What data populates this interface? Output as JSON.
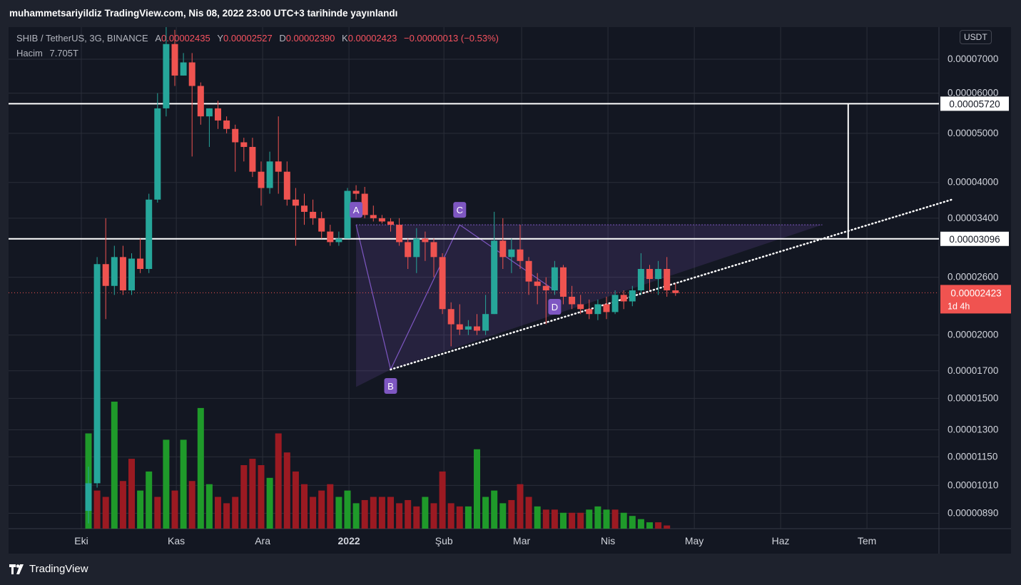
{
  "header": {
    "title": "muhammetsariyildiz TradingView.com, Nis 08, 2022 23:00 UTC+3 tarihinde yayınlandı"
  },
  "legend": {
    "symbol": "SHIB / TetherUS, 3G, BINANCE",
    "open_label": "A",
    "open": "0.00002435",
    "high_label": "Y",
    "high": "0.00002527",
    "low_label": "D",
    "low": "0.00002390",
    "close_label": "K",
    "close": "0.00002423",
    "change": "−0.00000013 (−0.53%)",
    "volume_label": "Hacim",
    "volume": "7.705T"
  },
  "unit": "USDT",
  "footer": {
    "brand": "TradingView"
  },
  "colors": {
    "up": "#26a69a",
    "down": "#ef5350",
    "vol_up": "#1f9a2a",
    "vol_down": "#9b1a22",
    "pattern": "#7e57c2",
    "price_badge": "#f05350",
    "background": "#131722"
  },
  "chart_data": {
    "type": "candlestick",
    "scale": "log",
    "ylim": [
      8.3e-06,
      8.1e-05
    ],
    "y_ticks": [
      "0.00007000",
      "0.00006000",
      "0.00005000",
      "0.00004000",
      "0.00003400",
      "0.00002600",
      "0.00002000",
      "0.00001700",
      "0.00001500",
      "0.00001300",
      "0.00001150",
      "0.00001010",
      "0.00000890"
    ],
    "y_tick_values": [
      7e-05,
      6e-05,
      5e-05,
      4e-05,
      3.4e-05,
      2.6e-05,
      2e-05,
      1.7e-05,
      1.5e-05,
      1.3e-05,
      1.15e-05,
      1.01e-05,
      8.9e-06
    ],
    "x_ticks": [
      {
        "label": "Eki",
        "bar": 0
      },
      {
        "label": "Kas",
        "bar": 11
      },
      {
        "label": "Ara",
        "bar": 21
      },
      {
        "label": "2022",
        "bar": 31
      },
      {
        "label": "Şub",
        "bar": 42
      },
      {
        "label": "Mar",
        "bar": 51
      },
      {
        "label": "Nis",
        "bar": 61
      },
      {
        "label": "May",
        "bar": 71
      },
      {
        "label": "Haz",
        "bar": 81
      },
      {
        "label": "Tem",
        "bar": 91
      }
    ],
    "candles": [
      [
        9e-06,
        1.1e-05,
        8.5e-06,
        1.02e-05
      ],
      [
        1.02e-05,
        2.85e-05,
        1e-05,
        2.76e-05
      ],
      [
        2.76e-05,
        3.4e-05,
        2.15e-05,
        2.5e-05
      ],
      [
        2.5e-05,
        3e-05,
        2.4e-05,
        2.85e-05
      ],
      [
        2.85e-05,
        3e-05,
        2.4e-05,
        2.45e-05
      ],
      [
        2.45e-05,
        2.9e-05,
        2.4e-05,
        2.83e-05
      ],
      [
        2.83e-05,
        3.1e-05,
        2.65e-05,
        2.7e-05
      ],
      [
        2.7e-05,
        3.8e-05,
        2.65e-05,
        3.7e-05
      ],
      [
        3.7e-05,
        6e-05,
        3.65e-05,
        5.6e-05
      ],
      [
        5.6e-05,
        8.8e-05,
        5.4e-05,
        7.5e-05
      ],
      [
        7.5e-05,
        8e-05,
        6.2e-05,
        6.5e-05
      ],
      [
        6.5e-05,
        7.2e-05,
        6.5e-05,
        6.9e-05
      ],
      [
        6.9e-05,
        7.2e-05,
        4.5e-05,
        6.2e-05
      ],
      [
        6.2e-05,
        6.3e-05,
        5.2e-05,
        5.4e-05
      ],
      [
        5.4e-05,
        5.6e-05,
        4.7e-05,
        5.6e-05
      ],
      [
        5.6e-05,
        5.8e-05,
        5.1e-05,
        5.3e-05
      ],
      [
        5.3e-05,
        5.4e-05,
        5e-05,
        5.1e-05
      ],
      [
        5.1e-05,
        5.2e-05,
        4.2e-05,
        4.8e-05
      ],
      [
        4.8e-05,
        4.9e-05,
        4.4e-05,
        4.7e-05
      ],
      [
        4.7e-05,
        4.9e-05,
        4.1e-05,
        4.2e-05
      ],
      [
        4.2e-05,
        4.4e-05,
        3.6e-05,
        3.9e-05
      ],
      [
        3.9e-05,
        4.6e-05,
        3.8e-05,
        4.4e-05
      ],
      [
        4.4e-05,
        5.4e-05,
        3.8e-05,
        4.2e-05
      ],
      [
        4.2e-05,
        4.4e-05,
        3.6e-05,
        3.7e-05
      ],
      [
        3.7e-05,
        3.9e-05,
        3e-05,
        3.6e-05
      ],
      [
        3.6e-05,
        3.8e-05,
        3.3e-05,
        3.5e-05
      ],
      [
        3.5e-05,
        3.7e-05,
        3.3e-05,
        3.4e-05
      ],
      [
        3.4e-05,
        3.5e-05,
        3.1e-05,
        3.2e-05
      ],
      [
        3.2e-05,
        3.3e-05,
        3e-05,
        3.05e-05
      ],
      [
        3.05e-05,
        3.2e-05,
        3e-05,
        3.1e-05
      ],
      [
        3.1e-05,
        3.9e-05,
        3.1e-05,
        3.85e-05
      ],
      [
        3.85e-05,
        3.95e-05,
        3.7e-05,
        3.8e-05
      ],
      [
        3.8e-05,
        3.92e-05,
        3.4e-05,
        3.45e-05
      ],
      [
        3.45e-05,
        3.6e-05,
        3.35e-05,
        3.4e-05
      ],
      [
        3.4e-05,
        3.45e-05,
        3.32e-05,
        3.35e-05
      ],
      [
        3.35e-05,
        3.4e-05,
        3.2e-05,
        3.3e-05
      ],
      [
        3.3e-05,
        3.4e-05,
        3e-05,
        3.05e-05
      ],
      [
        3.05e-05,
        3.1e-05,
        2.7e-05,
        2.85e-05
      ],
      [
        2.85e-05,
        3.25e-05,
        2.65e-05,
        3.1e-05
      ],
      [
        3.1e-05,
        3.2e-05,
        2.8e-05,
        3.05e-05
      ],
      [
        3.05e-05,
        3.1e-05,
        2.6e-05,
        2.85e-05
      ],
      [
        2.85e-05,
        2.9e-05,
        2.2e-05,
        2.25e-05
      ],
      [
        2.25e-05,
        2.32e-05,
        1.9e-05,
        2.1e-05
      ],
      [
        2.1e-05,
        2.3e-05,
        2e-05,
        2.05e-05
      ],
      [
        2.05e-05,
        2.14e-05,
        2e-05,
        2.08e-05
      ],
      [
        2.08e-05,
        2.2e-05,
        2e-05,
        2.04e-05
      ],
      [
        2.04e-05,
        2.4e-05,
        2e-05,
        2.2e-05
      ],
      [
        2.2e-05,
        3.5e-05,
        2.2e-05,
        3.07e-05
      ],
      [
        3.07e-05,
        3.4e-05,
        2.7e-05,
        2.85e-05
      ],
      [
        2.85e-05,
        3.1e-05,
        2.65e-05,
        2.95e-05
      ],
      [
        2.95e-05,
        3.3e-05,
        2.7e-05,
        2.8e-05
      ],
      [
        2.8e-05,
        2.85e-05,
        2.4e-05,
        2.55e-05
      ],
      [
        2.55e-05,
        2.65e-05,
        2.3e-05,
        2.5e-05
      ],
      [
        2.5e-05,
        2.6e-05,
        2.1e-05,
        2.45e-05
      ],
      [
        2.45e-05,
        2.8e-05,
        2.4e-05,
        2.72e-05
      ],
      [
        2.72e-05,
        2.75e-05,
        2.3e-05,
        2.38e-05
      ],
      [
        2.38e-05,
        2.5e-05,
        2.25e-05,
        2.3e-05
      ],
      [
        2.3e-05,
        2.4e-05,
        2.2e-05,
        2.25e-05
      ],
      [
        2.25e-05,
        2.35e-05,
        2.15e-05,
        2.2e-05
      ],
      [
        2.2e-05,
        2.35e-05,
        2.14e-05,
        2.3e-05
      ],
      [
        2.3e-05,
        2.38e-05,
        2.15e-05,
        2.22e-05
      ],
      [
        2.22e-05,
        2.45e-05,
        2.2e-05,
        2.4e-05
      ],
      [
        2.4e-05,
        2.45e-05,
        2.25e-05,
        2.33e-05
      ],
      [
        2.33e-05,
        2.5e-05,
        2.28e-05,
        2.45e-05
      ],
      [
        2.45e-05,
        2.9e-05,
        2.4e-05,
        2.7e-05
      ],
      [
        2.7e-05,
        2.75e-05,
        2.45e-05,
        2.58e-05
      ],
      [
        2.58e-05,
        2.8e-05,
        2.4e-05,
        2.7e-05
      ],
      [
        2.7e-05,
        2.85e-05,
        2.38e-05,
        2.45e-05
      ],
      [
        2.45e-05,
        2.53e-05,
        2.39e-05,
        2.42e-05
      ]
    ],
    "volume": [
      30,
      12,
      10,
      40,
      15,
      22,
      12,
      18,
      10,
      28,
      12,
      28,
      15,
      38,
      14,
      10,
      8,
      10,
      20,
      22,
      20,
      16,
      30,
      24,
      18,
      14,
      10,
      12,
      14,
      10,
      12,
      8,
      9,
      10,
      10,
      10,
      8,
      9,
      7,
      10,
      8,
      18,
      8,
      7,
      7,
      25,
      10,
      12,
      8,
      9,
      14,
      10,
      7,
      6,
      6,
      5,
      5,
      5,
      6,
      7,
      6,
      6,
      5,
      4,
      3,
      2,
      2,
      1
    ],
    "volume_colors": [
      "u",
      "d",
      "d",
      "u",
      "d",
      "d",
      "u",
      "u",
      "d",
      "u",
      "d",
      "u",
      "d",
      "u",
      "u",
      "d",
      "d",
      "d",
      "d",
      "d",
      "d",
      "u",
      "d",
      "d",
      "d",
      "d",
      "d",
      "d",
      "d",
      "u",
      "u",
      "u",
      "d",
      "d",
      "d",
      "d",
      "d",
      "d",
      "d",
      "u",
      "d",
      "d",
      "d",
      "d",
      "u",
      "u",
      "u",
      "u",
      "u",
      "d",
      "d",
      "d",
      "u",
      "d",
      "d",
      "u",
      "d",
      "d",
      "u",
      "u",
      "u",
      "d",
      "u",
      "u",
      "u",
      "u",
      "d",
      "d"
    ],
    "horizontal_levels": [
      {
        "value": 5.72e-05,
        "label": "0.00005720"
      },
      {
        "value": 3.096e-05,
        "label": "0.00003096"
      }
    ],
    "last_price": {
      "value": 2.423e-05,
      "label": "0.00002423",
      "countdown": "1d 4h"
    },
    "pattern": {
      "points": [
        {
          "label": "A",
          "bar": 31,
          "value": 3.3e-05
        },
        {
          "label": "B",
          "bar": 35,
          "value": 1.71e-05
        },
        {
          "label": "C",
          "bar": 43,
          "value": 3.3e-05
        },
        {
          "label": "D",
          "bar": 54,
          "value": 2.45e-05
        }
      ]
    },
    "trendline": {
      "start": {
        "bar": 35,
        "value": 1.71e-05
      },
      "end": {
        "bar": 100,
        "value": 3.7e-05
      }
    },
    "target_line": {
      "bar": 88,
      "from": 5.72e-05,
      "to": 3.096e-05
    }
  }
}
